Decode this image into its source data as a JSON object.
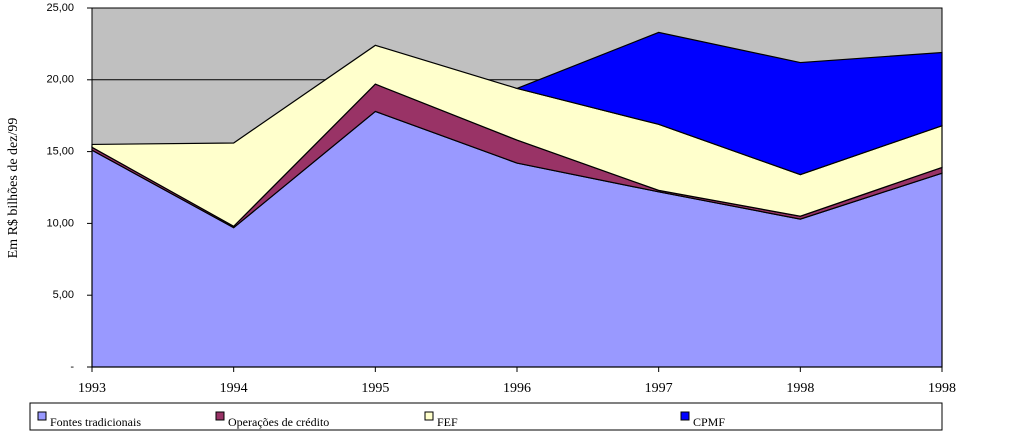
{
  "chart_data": {
    "type": "stacked-area",
    "y_label": "Em R$ bilhões de dez/99",
    "categories": [
      "1993",
      "1994",
      "1995",
      "1996",
      "1997",
      "1998",
      "1998"
    ],
    "series": [
      {
        "name": "Fontes tradicionais",
        "color": "#9999ff",
        "values": [
          15.1,
          9.7,
          17.8,
          14.2,
          12.2,
          10.3,
          13.5
        ]
      },
      {
        "name": "Operações de crédito",
        "color": "#993366",
        "values": [
          0.2,
          0.1,
          1.9,
          1.6,
          0.1,
          0.2,
          0.4
        ]
      },
      {
        "name": "FEF",
        "color": "#ffffcc",
        "values": [
          0.2,
          5.8,
          2.7,
          3.6,
          4.6,
          2.9,
          2.9
        ]
      },
      {
        "name": "CPMF",
        "color": "#0000ff",
        "values": [
          null,
          null,
          null,
          0,
          6.4,
          7.8,
          5.1
        ]
      }
    ],
    "ylim": [
      0,
      25
    ],
    "yticks": [
      {
        "value": 0,
        "label": "-"
      },
      {
        "value": 5,
        "label": "5,00"
      },
      {
        "value": 10,
        "label": "10,00"
      },
      {
        "value": 15,
        "label": "15,00"
      },
      {
        "value": 20,
        "label": "20,00"
      },
      {
        "value": 25,
        "label": "25,00"
      }
    ],
    "grid": true
  }
}
